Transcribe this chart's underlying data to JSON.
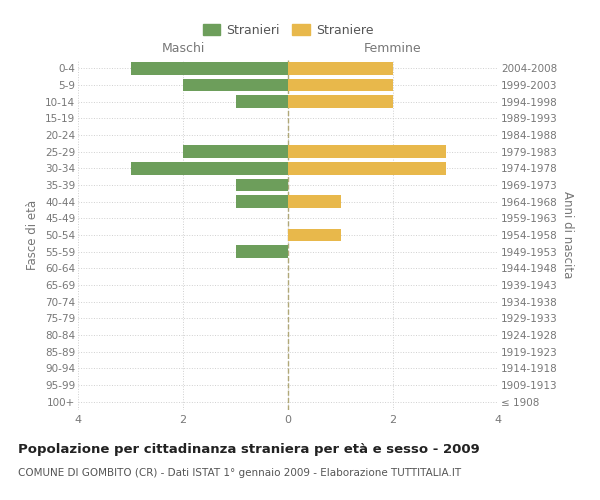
{
  "age_groups": [
    "100+",
    "95-99",
    "90-94",
    "85-89",
    "80-84",
    "75-79",
    "70-74",
    "65-69",
    "60-64",
    "55-59",
    "50-54",
    "45-49",
    "40-44",
    "35-39",
    "30-34",
    "25-29",
    "20-24",
    "15-19",
    "10-14",
    "5-9",
    "0-4"
  ],
  "birth_years": [
    "≤ 1908",
    "1909-1913",
    "1914-1918",
    "1919-1923",
    "1924-1928",
    "1929-1933",
    "1934-1938",
    "1939-1943",
    "1944-1948",
    "1949-1953",
    "1954-1958",
    "1959-1963",
    "1964-1968",
    "1969-1973",
    "1974-1978",
    "1979-1983",
    "1984-1988",
    "1989-1993",
    "1994-1998",
    "1999-2003",
    "2004-2008"
  ],
  "maschi": [
    0,
    0,
    0,
    0,
    0,
    0,
    0,
    0,
    0,
    1,
    0,
    0,
    1,
    1,
    3,
    2,
    0,
    0,
    1,
    2,
    3
  ],
  "femmine": [
    0,
    0,
    0,
    0,
    0,
    0,
    0,
    0,
    0,
    0,
    1,
    0,
    1,
    0,
    3,
    3,
    0,
    0,
    2,
    2,
    2
  ],
  "color_maschi": "#6d9e5b",
  "color_femmine": "#e8b84b",
  "title": "Popolazione per cittadinanza straniera per età e sesso - 2009",
  "subtitle": "COMUNE DI GOMBITO (CR) - Dati ISTAT 1° gennaio 2009 - Elaborazione TUTTITALIA.IT",
  "xlabel_left": "Maschi",
  "xlabel_right": "Femmine",
  "ylabel_left": "Fasce di età",
  "ylabel_right": "Anni di nascita",
  "legend_stranieri": "Stranieri",
  "legend_straniere": "Straniere",
  "xlim": 4,
  "background_color": "#ffffff",
  "grid_color": "#d0d0d0",
  "bar_height": 0.75
}
